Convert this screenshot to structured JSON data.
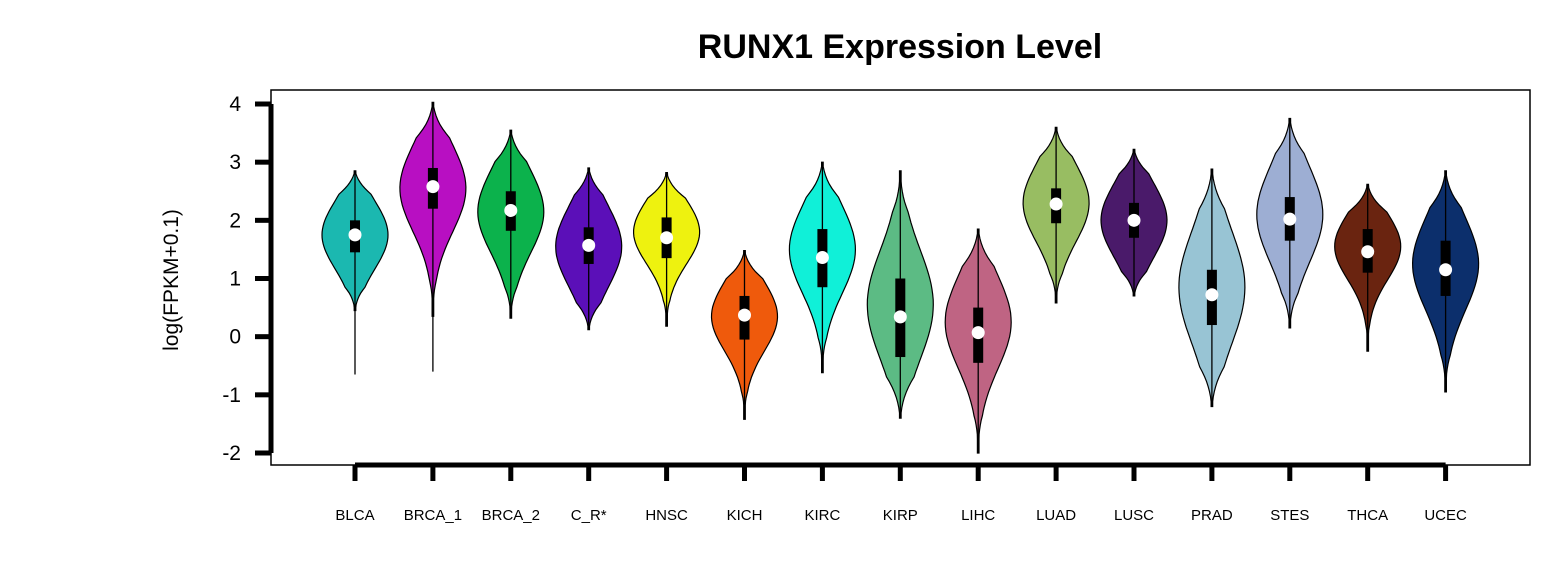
{
  "chart_data": {
    "type": "violin",
    "title": "RUNX1 Expression Level",
    "xlabel": "",
    "ylabel": "log(FPKM+0.1)",
    "ylim": [
      -2,
      4
    ],
    "yticks": [
      "4",
      "3",
      "2",
      "1",
      "0",
      "-1",
      "-2"
    ],
    "grid": false,
    "legend": "none",
    "categories": [
      "BLCA",
      "BRCA_1",
      "BRCA_2",
      "C_R*",
      "HNSC",
      "KICH",
      "KIRC",
      "KIRP",
      "LIHC",
      "LUAD",
      "LUSC",
      "PRAD",
      "STES",
      "THCA",
      "UCEC"
    ],
    "colors": [
      "#1bb8b0",
      "#b80fc2",
      "#0cb24c",
      "#5b0fb8",
      "#eef20f",
      "#ef5a0c",
      "#10f0d8",
      "#5cbb84",
      "#bf6483",
      "#98bd62",
      "#4a1a6a",
      "#98c4d4",
      "#9daed3",
      "#6a2410",
      "#0c2f6c"
    ],
    "series": [
      {
        "min": -0.65,
        "q1": 1.45,
        "median": 1.75,
        "q3": 2.0,
        "max": 2.85,
        "violin_low": 0.45,
        "violin_high": 2.85,
        "peak": 1.75
      },
      {
        "min": -0.6,
        "q1": 2.2,
        "median": 2.58,
        "q3": 2.9,
        "max": 4.03,
        "violin_low": 0.35,
        "violin_high": 4.03,
        "peak": 2.55
      },
      {
        "min": 0.32,
        "q1": 1.82,
        "median": 2.17,
        "q3": 2.5,
        "max": 3.55,
        "violin_low": 0.32,
        "violin_high": 3.55,
        "peak": 2.15
      },
      {
        "min": 0.12,
        "q1": 1.25,
        "median": 1.57,
        "q3": 1.88,
        "max": 2.9,
        "violin_low": 0.12,
        "violin_high": 2.9,
        "peak": 1.55
      },
      {
        "min": 0.18,
        "q1": 1.35,
        "median": 1.7,
        "q3": 2.05,
        "max": 2.82,
        "violin_low": 0.18,
        "violin_high": 2.82,
        "peak": 1.8
      },
      {
        "min": -1.42,
        "q1": -0.05,
        "median": 0.37,
        "q3": 0.7,
        "max": 1.48,
        "violin_low": -1.42,
        "violin_high": 1.48,
        "peak": 0.35
      },
      {
        "min": -0.62,
        "q1": 0.85,
        "median": 1.36,
        "q3": 1.85,
        "max": 3.0,
        "violin_low": -0.62,
        "violin_high": 3.0,
        "peak": 1.5
      },
      {
        "min": -1.4,
        "q1": -0.35,
        "median": 0.34,
        "q3": 1.0,
        "max": 2.85,
        "violin_low": -1.4,
        "violin_high": 2.85,
        "peak": 0.55
      },
      {
        "min": -2.0,
        "q1": -0.45,
        "median": 0.07,
        "q3": 0.5,
        "max": 1.85,
        "violin_low": -2.0,
        "violin_high": 1.85,
        "peak": 0.25
      },
      {
        "min": 0.58,
        "q1": 1.95,
        "median": 2.28,
        "q3": 2.55,
        "max": 3.6,
        "violin_low": 0.58,
        "violin_high": 3.6,
        "peak": 2.3
      },
      {
        "min": 0.7,
        "q1": 1.7,
        "median": 2.0,
        "q3": 2.3,
        "max": 3.22,
        "violin_low": 0.7,
        "violin_high": 3.22,
        "peak": 2.0
      },
      {
        "min": -1.2,
        "q1": 0.2,
        "median": 0.72,
        "q3": 1.15,
        "max": 2.88,
        "violin_low": -1.2,
        "violin_high": 2.88,
        "peak": 0.85
      },
      {
        "min": 0.15,
        "q1": 1.65,
        "median": 2.02,
        "q3": 2.4,
        "max": 3.75,
        "violin_low": 0.15,
        "violin_high": 3.75,
        "peak": 2.1
      },
      {
        "min": -0.25,
        "q1": 1.1,
        "median": 1.46,
        "q3": 1.85,
        "max": 2.62,
        "violin_low": -0.25,
        "violin_high": 2.62,
        "peak": 1.55
      },
      {
        "min": -0.95,
        "q1": 0.7,
        "median": 1.15,
        "q3": 1.65,
        "max": 2.85,
        "violin_low": -0.95,
        "violin_high": 2.85,
        "peak": 1.25
      }
    ]
  }
}
